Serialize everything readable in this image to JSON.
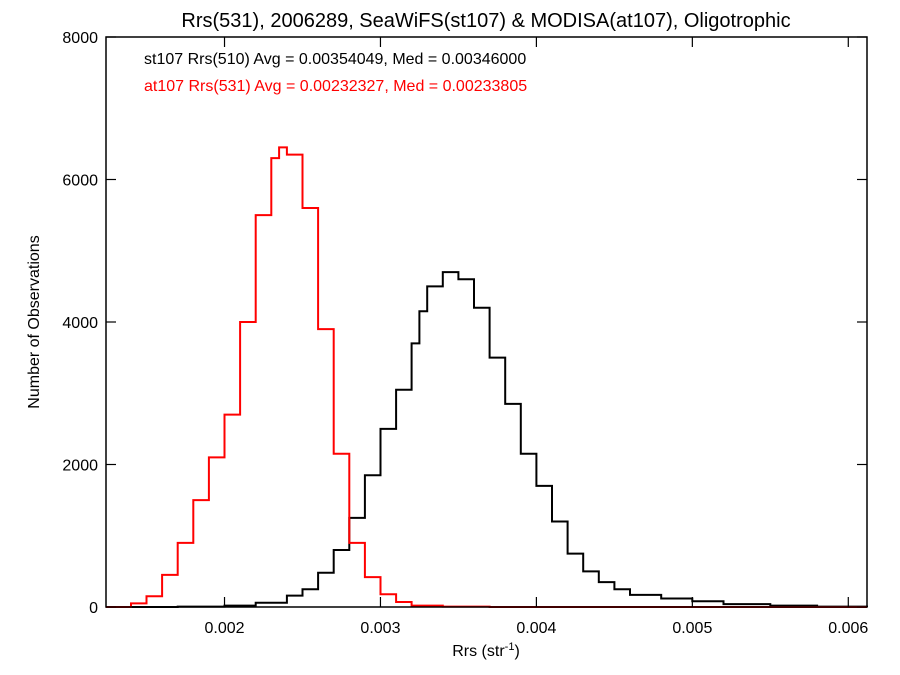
{
  "chart_data": {
    "type": "line",
    "title": "Rrs(531), 2006289, SeaWiFS(st107) & MODISA(at107), Oligotrophic",
    "xlabel": "Rrs (str",
    "xlabel_sup": "-1",
    "xlabel_close": ")",
    "ylabel": "Number of Observations",
    "xlim": [
      0.00124,
      0.00612
    ],
    "ylim": [
      0,
      8000
    ],
    "x_ticks": [
      0.002,
      0.003,
      0.004,
      0.005,
      0.006
    ],
    "x_tick_labels": [
      "0.002",
      "0.003",
      "0.004",
      "0.005",
      "0.006"
    ],
    "y_ticks": [
      0,
      2000,
      4000,
      6000,
      8000
    ],
    "y_tick_labels": [
      "0",
      "2000",
      "4000",
      "6000",
      "8000"
    ],
    "grid": false,
    "series": [
      {
        "name": "st107 Rrs(510) Avg = 0.00354049, Med = 0.00346000",
        "color": "#000000",
        "points": [
          [
            0.00124,
            0
          ],
          [
            0.0017,
            5
          ],
          [
            0.002,
            20
          ],
          [
            0.0022,
            60
          ],
          [
            0.0024,
            160
          ],
          [
            0.0025,
            250
          ],
          [
            0.0026,
            480
          ],
          [
            0.0027,
            800
          ],
          [
            0.0028,
            1250
          ],
          [
            0.0029,
            1850
          ],
          [
            0.003,
            2500
          ],
          [
            0.0031,
            3050
          ],
          [
            0.0032,
            3700
          ],
          [
            0.00325,
            4150
          ],
          [
            0.0033,
            4500
          ],
          [
            0.0034,
            4700
          ],
          [
            0.0035,
            4600
          ],
          [
            0.0036,
            4200
          ],
          [
            0.0037,
            3500
          ],
          [
            0.0038,
            2850
          ],
          [
            0.0039,
            2150
          ],
          [
            0.004,
            1700
          ],
          [
            0.0041,
            1200
          ],
          [
            0.0042,
            750
          ],
          [
            0.0043,
            500
          ],
          [
            0.0044,
            350
          ],
          [
            0.0045,
            250
          ],
          [
            0.0046,
            170
          ],
          [
            0.0048,
            120
          ],
          [
            0.005,
            80
          ],
          [
            0.0052,
            40
          ],
          [
            0.0055,
            20
          ],
          [
            0.0058,
            5
          ],
          [
            0.00612,
            0
          ]
        ]
      },
      {
        "name": "at107 Rrs(531) Avg = 0.00232327, Med = 0.00233805",
        "color": "#ff0000",
        "points": [
          [
            0.00124,
            0
          ],
          [
            0.0014,
            50
          ],
          [
            0.0015,
            150
          ],
          [
            0.0016,
            450
          ],
          [
            0.0017,
            900
          ],
          [
            0.0018,
            1500
          ],
          [
            0.0019,
            2100
          ],
          [
            0.002,
            2700
          ],
          [
            0.0021,
            4000
          ],
          [
            0.0022,
            5500
          ],
          [
            0.0023,
            6300
          ],
          [
            0.00235,
            6450
          ],
          [
            0.0024,
            6350
          ],
          [
            0.0025,
            5600
          ],
          [
            0.0026,
            3900
          ],
          [
            0.0027,
            2150
          ],
          [
            0.0028,
            900
          ],
          [
            0.0029,
            420
          ],
          [
            0.003,
            180
          ],
          [
            0.0031,
            70
          ],
          [
            0.0032,
            20
          ],
          [
            0.0034,
            5
          ],
          [
            0.0037,
            0
          ],
          [
            0.00612,
            0
          ]
        ]
      }
    ]
  }
}
